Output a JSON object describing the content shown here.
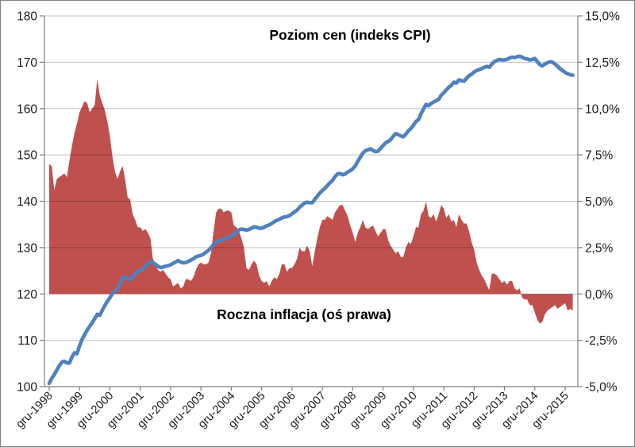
{
  "chart_data": {
    "type": "combo",
    "title": "Poziom cen (indeks CPI)",
    "annotation": "Roczna inflacja (oś prawa)",
    "x_start": "gru-1998",
    "frequency": "monthly",
    "x_tick_labels": [
      "gru-1998",
      "gru-1999",
      "gru-2000",
      "gru-2001",
      "gru-2002",
      "gru-2003",
      "gru-2004",
      "gru-2005",
      "gru-2006",
      "gru-2007",
      "gru-2008",
      "gru-2009",
      "gru-2010",
      "gru-2011",
      "gru-2012",
      "gru-2013",
      "gru-2014",
      "gru-2015"
    ],
    "left_axis": {
      "min": 100,
      "max": 180,
      "step": 10,
      "labels": [
        "180",
        "170",
        "160",
        "150",
        "140",
        "130",
        "120",
        "110",
        "100"
      ],
      "values": [
        180,
        170,
        160,
        150,
        140,
        130,
        120,
        110,
        100
      ]
    },
    "right_axis": {
      "min": -5,
      "max": 15,
      "step": 2.5,
      "labels": [
        "15,0%",
        "12,5%",
        "10,0%",
        "7,5%",
        "5,0%",
        "2,5%",
        "0,0%",
        "-2,5%",
        "-5,0%"
      ],
      "values": [
        15,
        12.5,
        10,
        7.5,
        5,
        2.5,
        0,
        -2.5,
        -5
      ]
    },
    "grid": true,
    "legend": "none",
    "colors": {
      "line": "#4F81BD",
      "area": "#C0504D",
      "gridline": "rgba(0,0,0,0.24)",
      "axis": "#808080",
      "tick_text": "#1a1a1a",
      "background": "#ffffff",
      "border": "#7f7f7f"
    },
    "series": [
      {
        "name": "Poziom cen (indeks CPI)",
        "type": "line",
        "axis": "left",
        "values": [
          100.7,
          101.8,
          102.6,
          103.6,
          104.5,
          105.3,
          105.5,
          105.1,
          105.1,
          106.4,
          107.3,
          107.1,
          108.8,
          110.2,
          111.2,
          112.2,
          113.0,
          113.8,
          114.7,
          115.6,
          115.4,
          116.5,
          117.5,
          118.4,
          119.2,
          120.1,
          120.5,
          121.2,
          122.2,
          123.4,
          123.6,
          123.3,
          123.1,
          123.7,
          124.4,
          124.9,
          125.0,
          125.4,
          125.9,
          126.5,
          127.0,
          126.8,
          126.4,
          126.0,
          125.7,
          125.8,
          126.0,
          126.1,
          126.3,
          126.6,
          126.9,
          127.2,
          126.9,
          126.7,
          126.8,
          127.0,
          127.3,
          127.6,
          128.0,
          128.2,
          128.3,
          128.6,
          129.0,
          129.4,
          130.0,
          130.7,
          131.2,
          131.5,
          131.6,
          131.8,
          132.0,
          132.2,
          132.5,
          132.8,
          133.3,
          133.8,
          134.0,
          133.9,
          133.8,
          133.9,
          134.2,
          134.5,
          134.4,
          134.2,
          134.2,
          134.4,
          134.7,
          134.9,
          135.2,
          135.6,
          135.9,
          136.1,
          136.4,
          136.6,
          136.7,
          136.9,
          137.3,
          137.7,
          138.1,
          138.7,
          139.2,
          139.6,
          139.8,
          139.7,
          139.7,
          140.4,
          141.1,
          141.8,
          142.3,
          142.8,
          143.4,
          144.0,
          144.5,
          145.3,
          145.9,
          146.0,
          145.7,
          145.9,
          146.3,
          146.6,
          147.0,
          147.6,
          148.6,
          149.5,
          150.4,
          150.9,
          151.1,
          151.3,
          151.0,
          150.7,
          150.8,
          151.4,
          152.0,
          152.6,
          152.9,
          153.3,
          154.0,
          154.6,
          154.4,
          154.1,
          153.9,
          154.5,
          155.2,
          155.7,
          156.4,
          157.2,
          157.6,
          158.9,
          159.9,
          160.9,
          160.6,
          161.1,
          161.4,
          161.7,
          162.0,
          162.9,
          163.4,
          164.0,
          164.6,
          165.0,
          165.7,
          165.5,
          166.2,
          166.0,
          165.9,
          166.5,
          167.1,
          167.4,
          167.9,
          168.2,
          168.4,
          168.6,
          168.9,
          169.1,
          168.9,
          169.6,
          170.1,
          170.4,
          170.6,
          170.5,
          170.5,
          170.6,
          170.9,
          171.1,
          171.0,
          171.2,
          171.3,
          171.1,
          170.8,
          170.7,
          170.5,
          170.6,
          170.8,
          170.1,
          169.5,
          169.2,
          169.6,
          169.9,
          170.1,
          170.0,
          169.6,
          169.1,
          168.6,
          168.2,
          167.8,
          167.5,
          167.3,
          167.2
        ]
      },
      {
        "name": "Roczna inflacja",
        "type": "area",
        "axis": "right",
        "values": [
          7.0,
          6.9,
          5.6,
          6.2,
          6.3,
          6.4,
          6.5,
          6.3,
          7.2,
          8.0,
          8.7,
          9.2,
          9.8,
          10.1,
          10.4,
          10.3,
          9.8,
          10.0,
          10.2,
          11.6,
          10.7,
          10.3,
          9.9,
          9.3,
          8.5,
          7.4,
          6.6,
          6.2,
          6.6,
          6.9,
          6.2,
          5.2,
          5.1,
          4.3,
          4.0,
          3.6,
          3.6,
          3.4,
          3.5,
          3.3,
          3.0,
          1.9,
          1.6,
          1.3,
          1.2,
          1.3,
          1.1,
          0.9,
          0.8,
          0.4,
          0.5,
          0.6,
          0.3,
          0.4,
          0.8,
          0.8,
          0.7,
          0.9,
          1.3,
          1.6,
          1.7,
          1.6,
          1.6,
          1.7,
          2.2,
          3.4,
          4.4,
          4.6,
          4.6,
          4.4,
          4.5,
          4.5,
          4.4,
          3.7,
          3.6,
          3.4,
          3.0,
          2.5,
          1.4,
          1.3,
          1.6,
          1.8,
          1.6,
          1.0,
          0.7,
          0.6,
          0.7,
          0.4,
          0.7,
          0.9,
          0.8,
          1.1,
          1.6,
          1.6,
          1.2,
          1.4,
          1.4,
          1.6,
          1.9,
          2.5,
          2.3,
          2.3,
          2.6,
          2.3,
          1.5,
          2.3,
          3.0,
          3.6,
          4.0,
          4.0,
          4.2,
          4.1,
          4.0,
          4.4,
          4.6,
          4.8,
          4.8,
          4.5,
          4.2,
          3.7,
          3.3,
          2.8,
          3.3,
          3.6,
          4.0,
          3.6,
          3.5,
          3.6,
          3.7,
          3.4,
          3.1,
          3.3,
          3.5,
          3.5,
          2.9,
          2.6,
          2.4,
          2.2,
          2.3,
          2.0,
          2.0,
          2.5,
          2.8,
          2.7,
          3.1,
          3.6,
          3.6,
          4.3,
          4.5,
          5.0,
          4.2,
          4.1,
          4.3,
          3.9,
          4.3,
          4.8,
          4.6,
          4.1,
          4.3,
          3.9,
          4.0,
          3.6,
          4.3,
          4.0,
          3.8,
          3.8,
          3.4,
          2.8,
          2.4,
          1.7,
          1.3,
          1.0,
          0.8,
          0.5,
          0.2,
          1.1,
          1.1,
          1.0,
          0.8,
          0.6,
          0.7,
          0.5,
          0.7,
          0.7,
          0.3,
          0.2,
          0.3,
          -0.2,
          -0.3,
          -0.3,
          -0.6,
          -0.6,
          -1.0,
          -1.4,
          -1.6,
          -1.5,
          -1.1,
          -0.9,
          -0.8,
          -0.7,
          -0.6,
          -0.8,
          -0.7,
          -0.6,
          -0.5,
          -0.9,
          -0.8,
          -0.9
        ]
      }
    ]
  }
}
